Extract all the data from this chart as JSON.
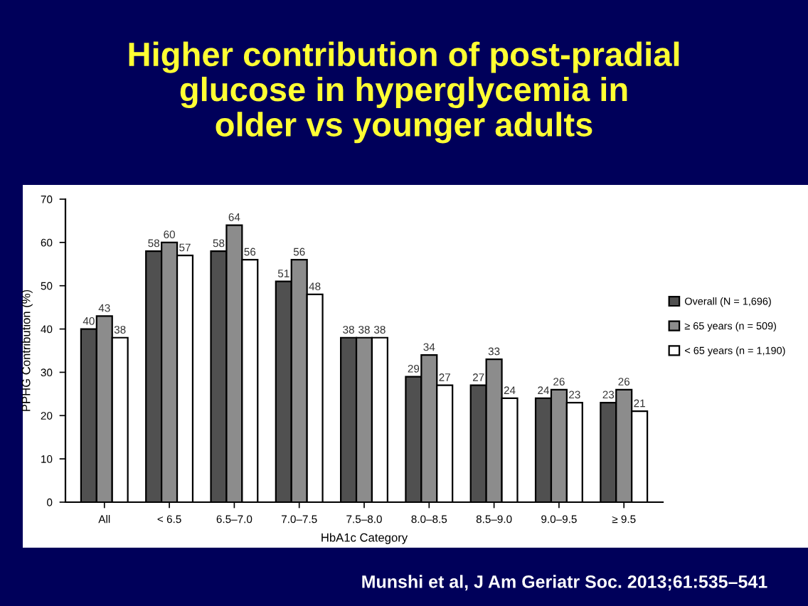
{
  "chart_data": {
    "type": "bar",
    "title": "Higher contribution of post-pradial\nglucose in hyperglycemia in\nolder vs younger adults",
    "xlabel": "HbA1c Category",
    "ylabel": "PPHG Contribution (%)",
    "categories": [
      "All",
      "< 6.5",
      "6.5–7.0",
      "7.0–7.5",
      "7.5–8.0",
      "8.0–8.5",
      "8.5–9.0",
      "9.0–9.5",
      "≥ 9.5"
    ],
    "series": [
      {
        "name": "Overall (N = 1,696)",
        "color": "#505050",
        "values": [
          40,
          58,
          58,
          51,
          38,
          29,
          27,
          24,
          23
        ]
      },
      {
        "name": "≥ 65 years (n = 509)",
        "color": "#8c8c8c",
        "values": [
          43,
          60,
          64,
          56,
          38,
          34,
          33,
          26,
          26
        ]
      },
      {
        "name": "< 65 years (n = 1,190)",
        "color": "#ffffff",
        "values": [
          38,
          57,
          56,
          48,
          38,
          27,
          24,
          23,
          21
        ]
      }
    ],
    "ylim": [
      0,
      70
    ],
    "yticks": [
      0,
      10,
      20,
      30,
      40,
      50,
      60,
      70
    ],
    "data_labels": true,
    "legend": "right",
    "grid": false,
    "annotations": [
      "Munshi et al, J Am Geriatr Soc. 2013;61:535–541"
    ]
  }
}
